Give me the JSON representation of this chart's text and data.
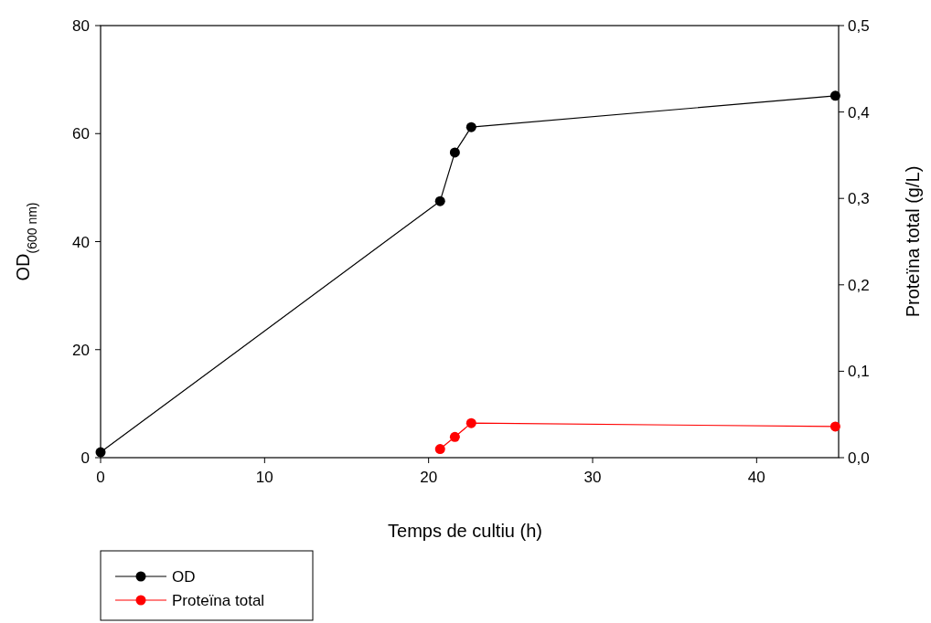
{
  "chart_data": {
    "type": "line",
    "xlabel": "Temps de cultiu (h)",
    "ylabel": "OD$_{(600 nm)}$",
    "y2label": "Proteïna total (g/L)",
    "xlim": [
      0,
      45
    ],
    "xticks": [
      0,
      10,
      20,
      30,
      40
    ],
    "ylim": [
      0,
      80
    ],
    "yticks": [
      0,
      20,
      40,
      60,
      80
    ],
    "y2lim": [
      0,
      0.5
    ],
    "y2ticks": [
      {
        "value": 0,
        "label": "0,0"
      },
      {
        "value": 0.1,
        "label": "0,1"
      },
      {
        "value": 0.2,
        "label": "0,2"
      },
      {
        "value": 0.3,
        "label": "0,3"
      },
      {
        "value": 0.4,
        "label": "0,4"
      },
      {
        "value": 0.5,
        "label": "0,5"
      }
    ],
    "grid": false,
    "legend": "bottom left",
    "marker": "circle",
    "line_style": "solid",
    "series": [
      {
        "name": "OD",
        "color": "#000000",
        "x": [
          0,
          20.7,
          21.6,
          22.6,
          44.8
        ],
        "values": [
          1,
          47.5,
          56.5,
          61.2,
          67
        ]
      },
      {
        "name": "Proteïna total",
        "color": "#ff0000",
        "axis": "y2",
        "x": [
          20.7,
          21.6,
          22.6,
          44.8
        ],
        "values": [
          0.01,
          0.024,
          0.04,
          0.036
        ]
      }
    ]
  }
}
